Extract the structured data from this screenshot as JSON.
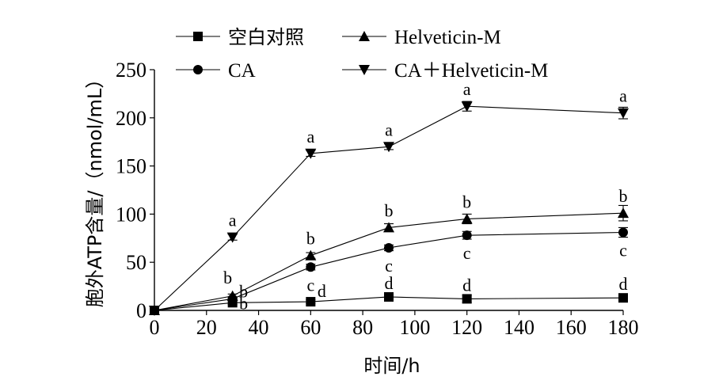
{
  "chart_data": {
    "type": "line",
    "xlabel": "时间/h",
    "ylabel": "胞外ATP含量/（nmol/mL）",
    "xlim": [
      0,
      180
    ],
    "ylim": [
      0,
      250
    ],
    "xticks": [
      0,
      20,
      40,
      60,
      80,
      100,
      120,
      140,
      160,
      180
    ],
    "yticks": [
      0,
      50,
      100,
      150,
      200,
      250
    ],
    "legend_position": "top",
    "x": [
      0,
      30,
      60,
      90,
      120,
      180
    ],
    "series": [
      {
        "name": "空白对照",
        "marker": "square",
        "values": [
          0,
          8,
          9,
          14,
          12,
          13
        ],
        "errors": [
          1,
          2,
          2,
          2,
          4,
          4
        ],
        "labels": [
          "",
          "b",
          "d",
          "d",
          "d",
          "d"
        ]
      },
      {
        "name": "CA",
        "marker": "circle",
        "values": [
          0,
          12,
          45,
          65,
          78,
          81
        ],
        "errors": [
          1,
          2,
          3,
          3,
          4,
          5
        ],
        "labels": [
          "",
          "b",
          "c",
          "c",
          "c",
          "c"
        ]
      },
      {
        "name": "Helveticin-M",
        "marker": "triangle-up",
        "values": [
          0,
          15,
          57,
          86,
          95,
          101
        ],
        "errors": [
          1,
          2,
          3,
          4,
          5,
          8
        ],
        "labels": [
          "",
          "b",
          "b",
          "b",
          "b",
          "b"
        ]
      },
      {
        "name": "CA＋Helveticin-M",
        "marker": "triangle-down",
        "values": [
          0,
          76,
          163,
          170,
          212,
          205
        ],
        "errors": [
          1,
          3,
          3,
          3,
          5,
          6
        ],
        "labels": [
          "",
          "a",
          "a",
          "a",
          "a",
          "a"
        ]
      }
    ]
  }
}
